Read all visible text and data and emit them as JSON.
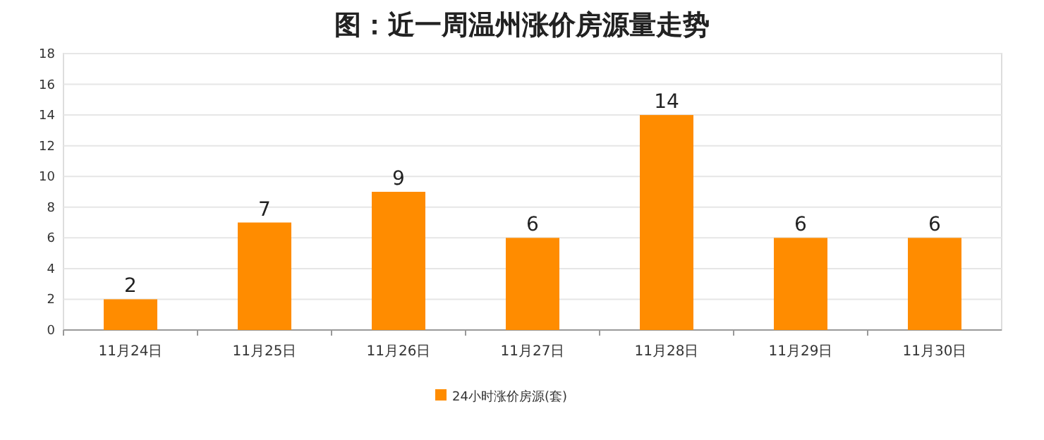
{
  "chart_data": {
    "type": "bar",
    "title": "图：近一周温州涨价房源量走势",
    "categories": [
      "11月24日",
      "11月25日",
      "11月26日",
      "11月27日",
      "11月28日",
      "11月29日",
      "11月30日"
    ],
    "series": [
      {
        "name": "24小时涨价房源(套)",
        "color": "#ff8c00",
        "values": [
          2,
          7,
          9,
          6,
          14,
          6,
          6
        ]
      }
    ],
    "ylim": [
      0,
      18
    ],
    "yticks": [
      0,
      2,
      4,
      6,
      8,
      10,
      12,
      14,
      16,
      18
    ],
    "grid": "y",
    "legend": "bottom",
    "data_labels": true
  }
}
